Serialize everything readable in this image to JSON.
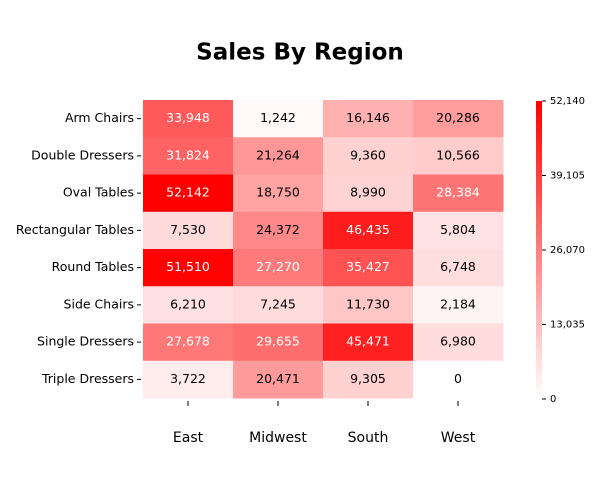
{
  "chart_data": {
    "type": "heatmap",
    "title": "Sales By Region",
    "x": [
      "East",
      "Midwest",
      "South",
      "West"
    ],
    "y": [
      "Arm Chairs",
      "Double Dressers",
      "Oval Tables",
      "Rectangular Tables",
      "Round Tables",
      "Side Chairs",
      "Single Dressers",
      "Triple Dressers"
    ],
    "values": [
      [
        33948,
        1242,
        16146,
        20286
      ],
      [
        31824,
        21264,
        9360,
        10566
      ],
      [
        52142,
        18750,
        8990,
        28384
      ],
      [
        7530,
        24372,
        46435,
        5804
      ],
      [
        51510,
        27270,
        35427,
        6748
      ],
      [
        6210,
        7245,
        11730,
        2184
      ],
      [
        27678,
        29655,
        45471,
        6980
      ],
      [
        3722,
        20471,
        9305,
        0
      ]
    ],
    "value_labels": [
      [
        "33,948",
        "1,242",
        "16,146",
        "20,286"
      ],
      [
        "31,824",
        "21,264",
        "9,360",
        "10,566"
      ],
      [
        "52,142",
        "18,750",
        "8,990",
        "28,384"
      ],
      [
        "7,530",
        "24,372",
        "46,435",
        "5,804"
      ],
      [
        "51,510",
        "27,270",
        "35,427",
        "6,748"
      ],
      [
        "6,210",
        "7,245",
        "11,730",
        "2,184"
      ],
      [
        "27,678",
        "29,655",
        "45,471",
        "6,980"
      ],
      [
        "3,722",
        "20,471",
        "9,305",
        "0"
      ]
    ],
    "color": "#ff0000",
    "zlim": [
      0,
      52142
    ],
    "zticks": [
      0,
      {
        "value": 13035,
        "label": "13,035"
      },
      {
        "value": 26070,
        "label": "26,070"
      },
      {
        "value": 39105,
        "label": "39,105"
      },
      {
        "value": 52140,
        "label": "52,140"
      }
    ]
  }
}
